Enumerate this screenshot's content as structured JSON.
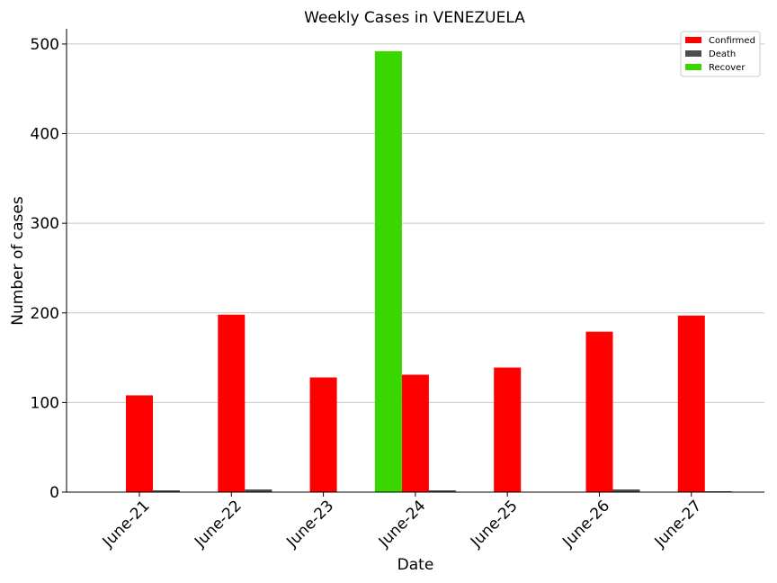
{
  "chart_data": {
    "type": "bar",
    "title": "Weekly Cases in VENEZUELA",
    "xlabel": "Date",
    "ylabel": "Number of cases",
    "categories": [
      "June-21",
      "June-22",
      "June-23",
      "June-24",
      "June-25",
      "June-26",
      "June-27"
    ],
    "series": [
      {
        "name": "Confirmed",
        "color": "#ff0000",
        "values": [
          108,
          198,
          128,
          131,
          139,
          179,
          197
        ]
      },
      {
        "name": "Death",
        "color": "#4d4d4d",
        "values": [
          2,
          3,
          0,
          2,
          0,
          3,
          1
        ]
      },
      {
        "name": "Recover",
        "color": "#39d600",
        "values": [
          0,
          0,
          0,
          492,
          0,
          0,
          0
        ]
      }
    ],
    "ylim": [
      0,
      517
    ],
    "yticks": [
      0,
      100,
      200,
      300,
      400,
      500
    ],
    "grid": "horizontal",
    "legend_position": "top-right"
  }
}
